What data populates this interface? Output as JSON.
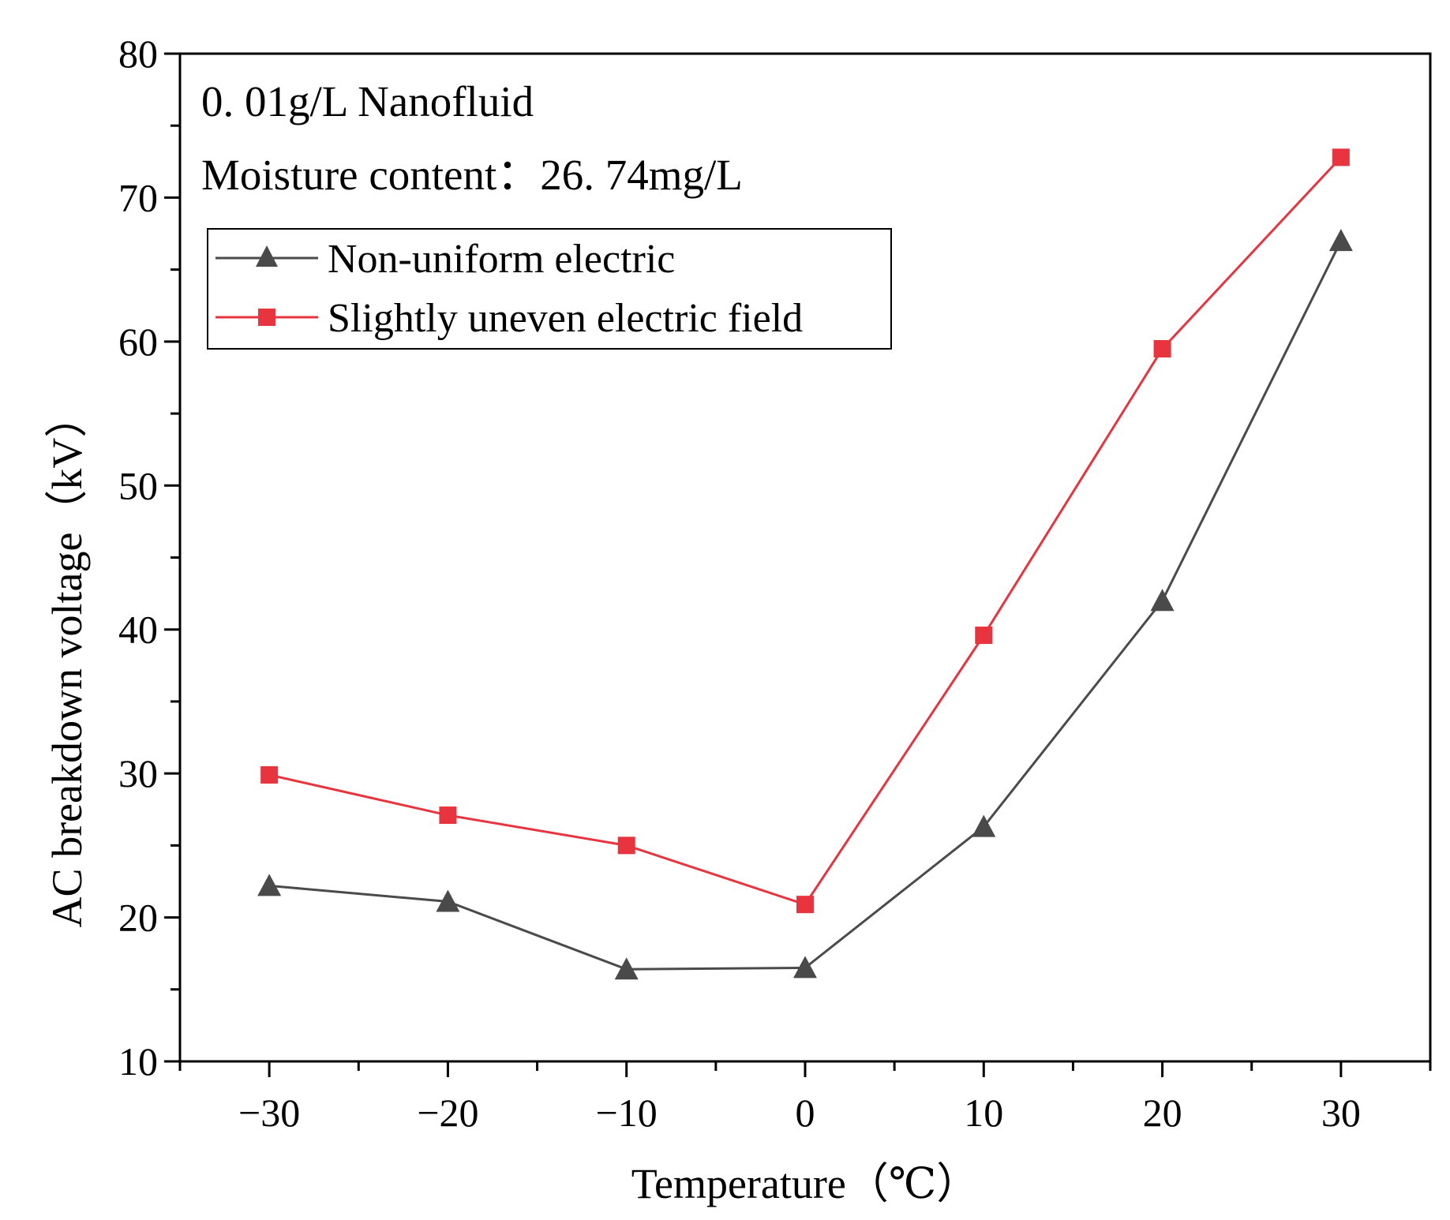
{
  "chart_data": {
    "type": "line",
    "title": "",
    "annotations": [
      "0. 01g/L Nanofluid",
      "Moisture content：26. 74mg/L"
    ],
    "xlabel": "Temperature（℃）",
    "ylabel": "AC breakdown voltage（kV）",
    "xlim": [
      -35,
      35
    ],
    "ylim": [
      10,
      80
    ],
    "x": [
      -30,
      -20,
      -10,
      0,
      10,
      20,
      30
    ],
    "x_ticks": [
      -30,
      -20,
      -10,
      0,
      10,
      20,
      30
    ],
    "x_tick_labels": [
      "−30",
      "−20",
      "−10",
      "0",
      "10",
      "20",
      "30"
    ],
    "y_ticks": [
      10,
      20,
      30,
      40,
      50,
      60,
      70,
      80
    ],
    "y_tick_labels": [
      "10",
      "20",
      "30",
      "40",
      "50",
      "60",
      "70",
      "80"
    ],
    "grid": false,
    "legend_position": "top-left",
    "series": [
      {
        "name": "Non-uniform electric",
        "marker": "triangle",
        "color": "#4a4a4a",
        "values": [
          22.2,
          21.1,
          16.4,
          16.5,
          26.3,
          42.0,
          67.0
        ]
      },
      {
        "name": "Slightly uneven electric field",
        "marker": "square",
        "color": "#e8343e",
        "values": [
          29.9,
          27.1,
          25.0,
          20.9,
          39.6,
          59.5,
          72.8
        ]
      }
    ]
  }
}
